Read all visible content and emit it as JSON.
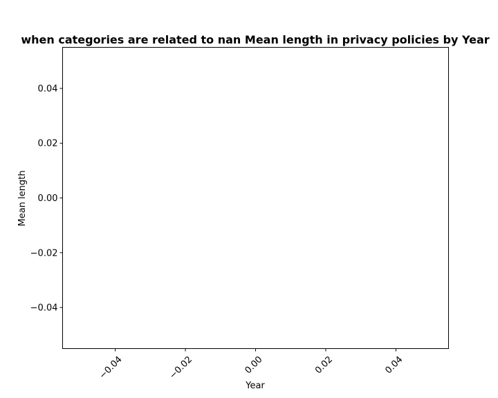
{
  "chart_data": {
    "type": "line",
    "title": "when categories are related to nan Mean length in privacy policies by Year",
    "xlabel": "Year",
    "ylabel": "Mean length",
    "xlim": [
      -0.055,
      0.055
    ],
    "ylim": [
      -0.055,
      0.055
    ],
    "x_ticks": [
      -0.04,
      -0.02,
      0.0,
      0.02,
      0.04
    ],
    "x_tick_labels": [
      "−0.04",
      "−0.02",
      "0.00",
      "0.02",
      "0.04"
    ],
    "y_ticks": [
      -0.04,
      -0.02,
      0.0,
      0.02,
      0.04
    ],
    "y_tick_labels": [
      "−0.04",
      "−0.02",
      "0.00",
      "0.02",
      "0.04"
    ],
    "x_tick_rotation": 45,
    "grid": false,
    "series": []
  }
}
